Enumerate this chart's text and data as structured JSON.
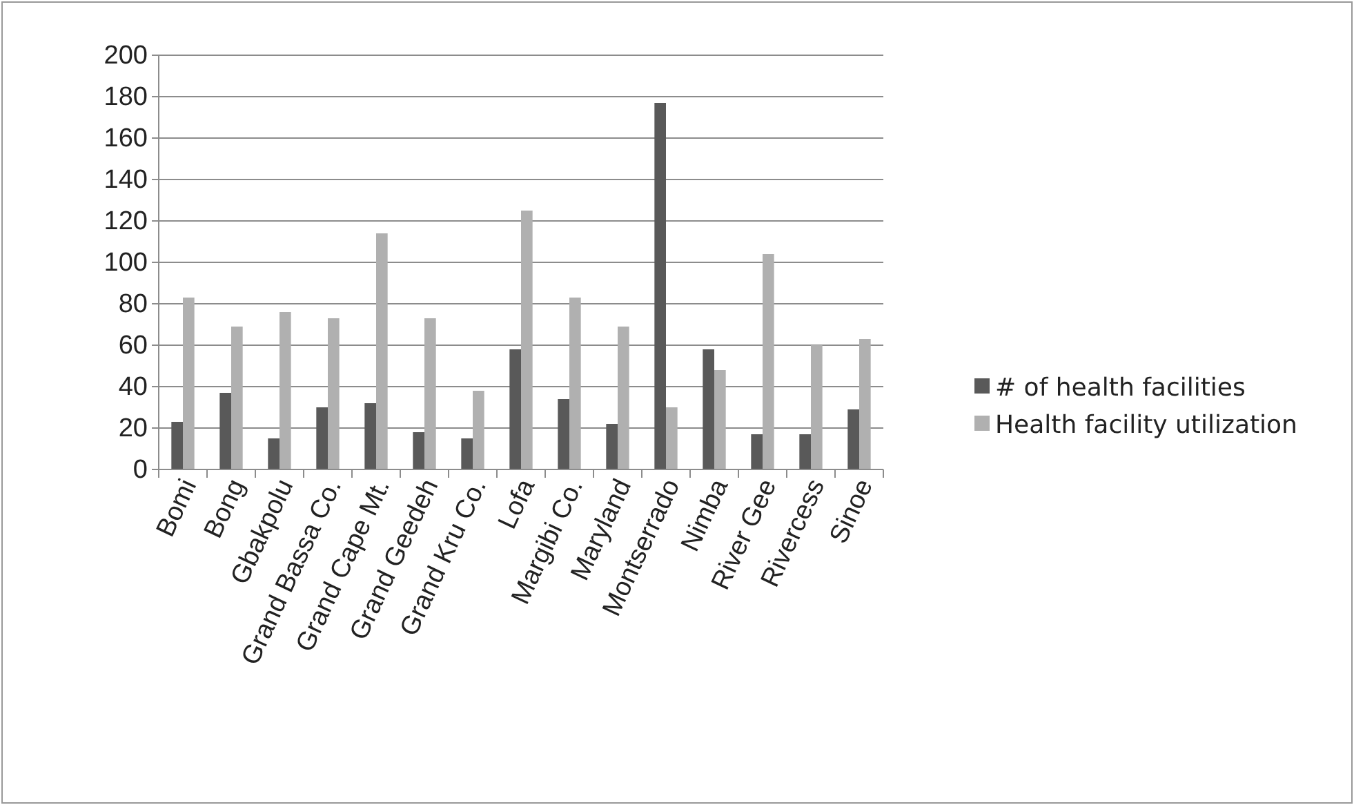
{
  "chart_data": {
    "type": "bar",
    "categories": [
      "Bomi",
      "Bong",
      "Gbakpolu",
      "Grand Bassa Co.",
      "Grand Cape Mt.",
      "Grand Geedeh",
      "Grand Kru Co.",
      "Lofa",
      "Margibi Co.",
      "Maryland",
      "Montserrado",
      "Nimba",
      "River Gee",
      "Rivercess",
      "Sinoe"
    ],
    "series": [
      {
        "name": "# of health facilities",
        "color": "#595959",
        "values": [
          23,
          37,
          15,
          30,
          32,
          18,
          15,
          58,
          34,
          22,
          177,
          58,
          17,
          17,
          29
        ]
      },
      {
        "name": "Health facility utilization",
        "color": "#b0b0b0",
        "values": [
          83,
          69,
          76,
          73,
          114,
          73,
          38,
          125,
          83,
          69,
          30,
          48,
          104,
          60,
          63
        ]
      }
    ],
    "ylim": [
      0,
      200
    ],
    "yticks": [
      0,
      20,
      40,
      60,
      80,
      100,
      120,
      140,
      160,
      180,
      200
    ],
    "grid": "y",
    "legend": "right"
  }
}
